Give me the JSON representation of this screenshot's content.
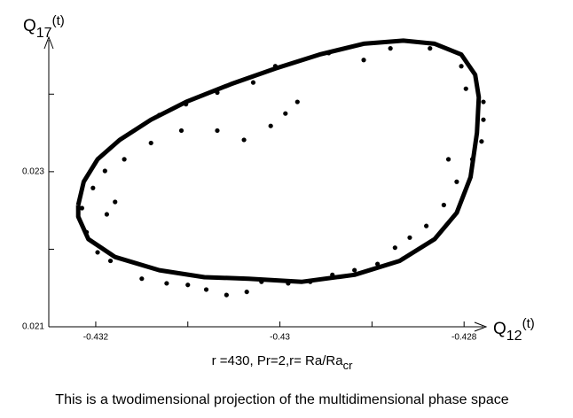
{
  "chart_data": {
    "type": "scatter",
    "color": "#000000",
    "x_label": {
      "base": "Q",
      "sub": "12",
      "suffix": "(t)"
    },
    "y_label": {
      "base": "Q",
      "sub": "17",
      "suffix": "(t)"
    },
    "xlim": [
      -0.43251,
      -0.42779
    ],
    "ylim": [
      0.021,
      0.0247
    ],
    "xticks": [
      -0.432,
      -0.43,
      -0.428
    ],
    "yticks": [
      0.021,
      0.023
    ],
    "xminorticks": [
      -0.431,
      -0.429
    ],
    "yminorticks": [
      0.022,
      0.024
    ],
    "curve": {
      "x": [
        -0.43219,
        -0.43213,
        -0.43198,
        -0.43174,
        -0.4314,
        -0.43102,
        -0.43053,
        -0.43005,
        -0.42957,
        -0.42909,
        -0.42866,
        -0.42832,
        -0.42803,
        -0.42788,
        -0.42784,
        -0.42786,
        -0.42793,
        -0.42808,
        -0.42832,
        -0.4287,
        -0.42919,
        -0.42976,
        -0.43034,
        -0.43082,
        -0.43131,
        -0.43179,
        -0.43208,
        -0.43219,
        -0.43219
      ],
      "y": [
        0.02257,
        0.02287,
        0.02316,
        0.02341,
        0.02367,
        0.0239,
        0.02413,
        0.02433,
        0.02451,
        0.02465,
        0.02469,
        0.02465,
        0.02451,
        0.02425,
        0.02396,
        0.0235,
        0.02293,
        0.02247,
        0.02213,
        0.02185,
        0.02167,
        0.02158,
        0.02162,
        0.02164,
        0.02173,
        0.0219,
        0.02213,
        0.02242,
        0.02257
      ]
    },
    "points": {
      "x": [
        -0.42981,
        -0.42994,
        -0.4301,
        -0.43039,
        -0.43068,
        -0.43107,
        -0.4314,
        -0.43169,
        -0.4319,
        -0.43203,
        -0.43215,
        -0.43188,
        -0.4321,
        -0.43198,
        -0.43184,
        -0.4315,
        -0.43123,
        -0.431,
        -0.4308,
        -0.43058,
        -0.43036,
        -0.4302,
        -0.42991,
        -0.42967,
        -0.42943,
        -0.42919,
        -0.42894,
        -0.42875,
        -0.42859,
        -0.42841,
        -0.42822,
        -0.42808,
        -0.42791,
        -0.42781,
        -0.42779,
        -0.42779,
        -0.42798,
        -0.42803,
        -0.42837,
        -0.4288,
        -0.42909,
        -0.42947,
        -0.43005,
        -0.43029,
        -0.43068,
        -0.43102,
        -0.43131,
        -0.43179,
        -0.42866,
        -0.42817
      ],
      "y": [
        0.0239,
        0.02375,
        0.02359,
        0.02341,
        0.02353,
        0.02353,
        0.02337,
        0.02316,
        0.02301,
        0.02279,
        0.02253,
        0.02245,
        0.02222,
        0.02196,
        0.02185,
        0.02162,
        0.02156,
        0.02154,
        0.02148,
        0.02141,
        0.02145,
        0.02158,
        0.02156,
        0.02158,
        0.02167,
        0.02173,
        0.02181,
        0.02202,
        0.02215,
        0.0223,
        0.02257,
        0.02287,
        0.02316,
        0.02339,
        0.02367,
        0.0239,
        0.02407,
        0.02436,
        0.02459,
        0.02459,
        0.02444,
        0.02453,
        0.02436,
        0.02415,
        0.02402,
        0.02387,
        0.02373,
        0.02261,
        0.02188,
        0.02316
      ]
    },
    "note": {
      "text": "r =430, Pr=2,r= Ra/Ra",
      "sub": "cr"
    },
    "caption": "This is a twodimensional projection of the multidimensional phase space"
  }
}
